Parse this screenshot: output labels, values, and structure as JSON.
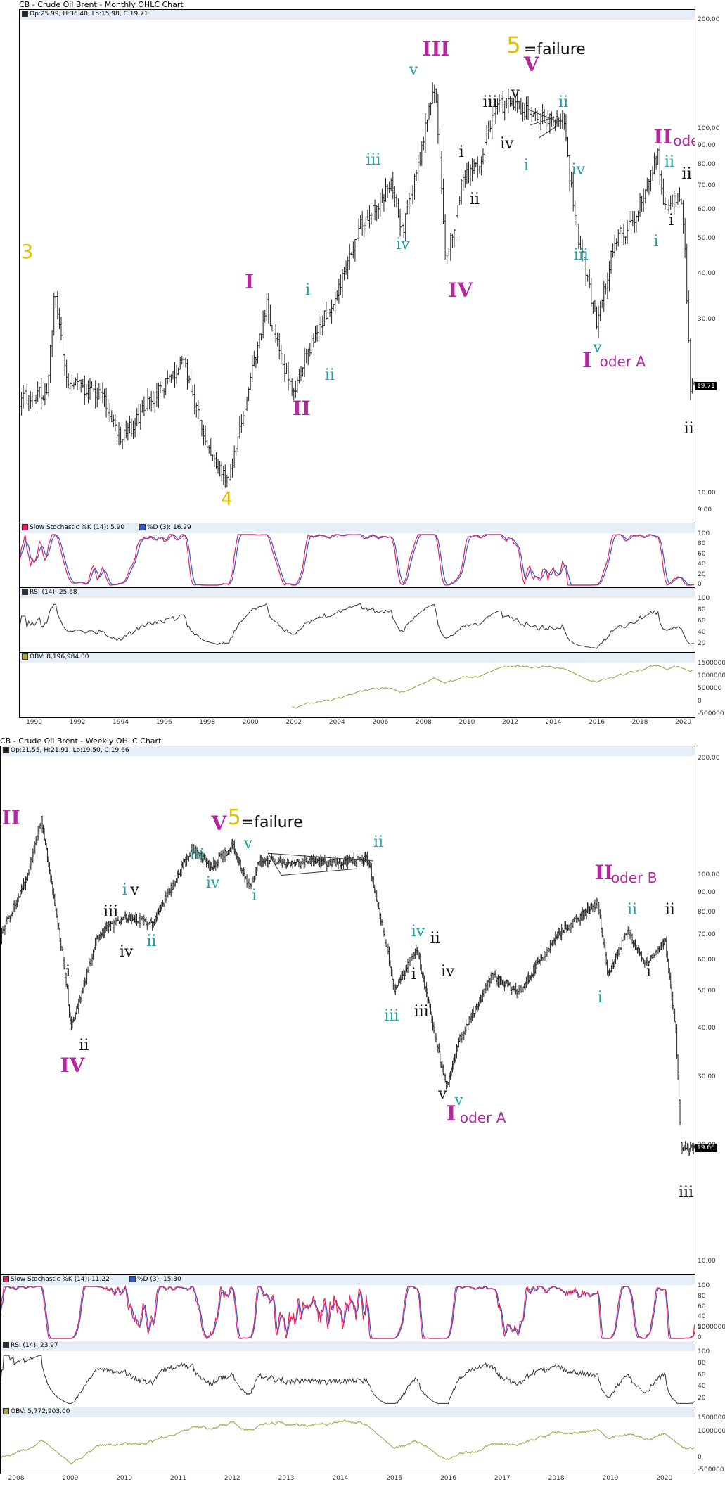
{
  "colors": {
    "magenta": "#b4279e",
    "teal": "#1d9fa5",
    "yellow": "#e0c100",
    "black": "#111111",
    "price": "#222222",
    "k_line": "#e0245e",
    "d_line": "#2a5bd7",
    "rsi": "#333333",
    "obv": "#a89f4e",
    "panel_header": "#e6eef8"
  },
  "charts": [
    {
      "id": "monthly",
      "title": "CB - Crude Oil Brent - Monthly OHLC Chart",
      "ohlc_label": "Op:25.99, H:36.40, Lo:15.98, C:19.71",
      "last_price": "19.71",
      "stoch_k_label": "Slow Stochastic %K (14): 5.90",
      "stoch_d_label": "%D (3): 16.29",
      "rsi_label": "RSI (14): 25.68",
      "obv_label": "OBV: 8,196,984.00",
      "price_ticks": [
        "200.00",
        "100.00",
        "90.00",
        "80.00",
        "70.00",
        "60.00",
        "50.00",
        "40.00",
        "30.00",
        "10.00",
        "9.00"
      ],
      "stoch_ticks": [
        "100",
        "80",
        "60",
        "40",
        "20",
        "0"
      ],
      "rsi_ticks": [
        "100",
        "80",
        "60",
        "40",
        "20"
      ],
      "obv_ticks": [
        "1500000",
        "1000000",
        "500000",
        "0",
        "-500000"
      ],
      "years": [
        "1990",
        "1992",
        "1994",
        "1996",
        "1998",
        "2000",
        "2002",
        "2004",
        "2006",
        "2008",
        "2010",
        "2012",
        "2014",
        "2016",
        "2018",
        "2020"
      ],
      "annotations": [
        {
          "text": "3",
          "color": "yellow",
          "x": 1989.35,
          "price": 46,
          "size": 28,
          "sans": true
        },
        {
          "text": "4",
          "color": "yellow",
          "x": 1998.6,
          "price": 9.6,
          "size": 26,
          "sans": true
        },
        {
          "text": "5",
          "color": "yellow",
          "x": 2011.8,
          "price": 170,
          "size": 32,
          "sans": true
        },
        {
          "text": "=failure",
          "color": "black",
          "x": 2012.6,
          "price": 165,
          "size": 22,
          "sans": true
        },
        {
          "text": "I",
          "color": "magenta",
          "x": 1999.7,
          "price": 38,
          "size": 28
        },
        {
          "text": "II",
          "color": "magenta",
          "x": 2001.9,
          "price": 17,
          "size": 28
        },
        {
          "text": "III",
          "color": "magenta",
          "x": 2007.9,
          "price": 165,
          "size": 28
        },
        {
          "text": "IV",
          "color": "magenta",
          "x": 2009.1,
          "price": 36,
          "size": 28
        },
        {
          "text": "V",
          "color": "magenta",
          "x": 2012.6,
          "price": 150,
          "size": 28
        },
        {
          "text": "I",
          "color": "magenta",
          "x": 2015.3,
          "price": 23,
          "size": 30
        },
        {
          "text": "oder A",
          "color": "magenta",
          "x": 2016.1,
          "price": 23,
          "size": 20,
          "sans": true
        },
        {
          "text": "II",
          "color": "magenta",
          "x": 2018.6,
          "price": 95,
          "size": 28
        },
        {
          "text": "oder B",
          "color": "magenta",
          "x": 2019.5,
          "price": 93,
          "size": 20,
          "sans": true
        },
        {
          "text": "v",
          "color": "teal",
          "x": 2007.3,
          "price": 145,
          "size": 22
        },
        {
          "text": "iii",
          "color": "teal",
          "x": 2005.3,
          "price": 82,
          "size": 22
        },
        {
          "text": "iv",
          "color": "teal",
          "x": 2006.7,
          "price": 48,
          "size": 22
        },
        {
          "text": "i",
          "color": "teal",
          "x": 2002.5,
          "price": 36,
          "size": 22
        },
        {
          "text": "ii",
          "color": "teal",
          "x": 2003.4,
          "price": 21,
          "size": 22
        },
        {
          "text": "iii",
          "color": "teal",
          "x": 2014.9,
          "price": 45,
          "size": 22
        },
        {
          "text": "iv",
          "color": "teal",
          "x": 2014.8,
          "price": 77,
          "size": 22
        },
        {
          "text": "v",
          "color": "teal",
          "x": 2015.8,
          "price": 25,
          "size": 22
        },
        {
          "text": "ii",
          "color": "teal",
          "x": 2014.2,
          "price": 118,
          "size": 22
        },
        {
          "text": "i",
          "color": "teal",
          "x": 2012.6,
          "price": 79,
          "size": 22
        },
        {
          "text": "ii",
          "color": "teal",
          "x": 2019.1,
          "price": 81,
          "size": 22
        },
        {
          "text": "i",
          "color": "teal",
          "x": 2018.6,
          "price": 49,
          "size": 22
        },
        {
          "text": "iii",
          "color": "black",
          "x": 2010.7,
          "price": 118,
          "size": 22
        },
        {
          "text": "v",
          "color": "black",
          "x": 2012.0,
          "price": 125,
          "size": 22
        },
        {
          "text": "iv",
          "color": "black",
          "x": 2011.5,
          "price": 91,
          "size": 22
        },
        {
          "text": "i",
          "color": "black",
          "x": 2009.6,
          "price": 86,
          "size": 22
        },
        {
          "text": "ii",
          "color": "black",
          "x": 2010.1,
          "price": 64,
          "size": 22
        },
        {
          "text": "i",
          "color": "black",
          "x": 2019.3,
          "price": 56,
          "size": 22
        },
        {
          "text": "ii",
          "color": "black",
          "x": 2019.9,
          "price": 75,
          "size": 22
        },
        {
          "text": "iii",
          "color": "black",
          "x": 2020.0,
          "price": 15,
          "size": 22
        }
      ]
    },
    {
      "id": "weekly",
      "title": "CB - Crude Oil Brent - Weekly OHLC Chart",
      "ohlc_label": "Op:21.55, H:21.91, Lo:19.50, C:19.66",
      "last_price": "19.66",
      "stoch_k_label": "Slow Stochastic %K (14): 11.22",
      "stoch_d_label": "%D (3): 15.30",
      "rsi_label": "RSI (14): 23.97",
      "obv_label": "OBV: 5,772,903.00",
      "price_ticks": [
        "200.00",
        "100.00",
        "90.00",
        "80.00",
        "70.00",
        "60.00",
        "50.00",
        "40.00",
        "30.00",
        "20.00",
        "10.00"
      ],
      "stoch_ticks": [
        "100",
        "80",
        "60",
        "40",
        "20",
        "0"
      ],
      "rsi_ticks": [
        "100",
        "80",
        "60",
        "40",
        "20"
      ],
      "obv_ticks": [
        "1500000",
        "1000000",
        "5000000",
        "0",
        "-500000"
      ],
      "years": [
        "2008",
        "2009",
        "2010",
        "2011",
        "2012",
        "2013",
        "2014",
        "2015",
        "2016",
        "2017",
        "2018",
        "2019",
        "2020"
      ],
      "annotations": [
        {
          "text": "III",
          "color": "magenta",
          "x": 2007.55,
          "price": 140,
          "size": 28
        },
        {
          "text": "IV",
          "color": "magenta",
          "x": 2008.8,
          "price": 32,
          "size": 28
        },
        {
          "text": "V",
          "color": "magenta",
          "x": 2011.6,
          "price": 135,
          "size": 28
        },
        {
          "text": "5",
          "color": "yellow",
          "x": 2011.9,
          "price": 140,
          "size": 30,
          "sans": true
        },
        {
          "text": "=failure",
          "color": "black",
          "x": 2012.15,
          "price": 136,
          "size": 22,
          "sans": true
        },
        {
          "text": "I",
          "color": "magenta",
          "x": 2015.95,
          "price": 24,
          "size": 30
        },
        {
          "text": "oder A",
          "color": "magenta",
          "x": 2016.2,
          "price": 23.5,
          "size": 20,
          "sans": true
        },
        {
          "text": "II",
          "color": "magenta",
          "x": 2018.7,
          "price": 101,
          "size": 28
        },
        {
          "text": "oder B",
          "color": "magenta",
          "x": 2019.0,
          "price": 98,
          "size": 20,
          "sans": true
        },
        {
          "text": "iii",
          "color": "teal",
          "x": 2011.2,
          "price": 112,
          "size": 22
        },
        {
          "text": "iv",
          "color": "teal",
          "x": 2011.5,
          "price": 95,
          "size": 22
        },
        {
          "text": "v",
          "color": "teal",
          "x": 2012.2,
          "price": 120,
          "size": 22
        },
        {
          "text": "i",
          "color": "teal",
          "x": 2012.35,
          "price": 88,
          "size": 22
        },
        {
          "text": "ii",
          "color": "teal",
          "x": 2014.6,
          "price": 121,
          "size": 22
        },
        {
          "text": "i",
          "color": "teal",
          "x": 2009.95,
          "price": 91,
          "size": 22
        },
        {
          "text": "ii",
          "color": "teal",
          "x": 2010.4,
          "price": 67,
          "size": 22
        },
        {
          "text": "iii",
          "color": "teal",
          "x": 2014.8,
          "price": 43,
          "size": 22
        },
        {
          "text": "iv",
          "color": "teal",
          "x": 2015.3,
          "price": 71,
          "size": 22
        },
        {
          "text": "v",
          "color": "teal",
          "x": 2016.1,
          "price": 26,
          "size": 22
        },
        {
          "text": "ii",
          "color": "teal",
          "x": 2019.3,
          "price": 81,
          "size": 22
        },
        {
          "text": "i",
          "color": "teal",
          "x": 2018.75,
          "price": 48,
          "size": 22
        },
        {
          "text": "i",
          "color": "black",
          "x": 2008.9,
          "price": 56,
          "size": 22
        },
        {
          "text": "ii",
          "color": "black",
          "x": 2009.15,
          "price": 36,
          "size": 22
        },
        {
          "text": "iii",
          "color": "black",
          "x": 2009.6,
          "price": 80,
          "size": 22
        },
        {
          "text": "v",
          "color": "black",
          "x": 2010.1,
          "price": 91,
          "size": 22
        },
        {
          "text": "iv",
          "color": "black",
          "x": 2009.9,
          "price": 63,
          "size": 22
        },
        {
          "text": "i",
          "color": "black",
          "x": 2015.3,
          "price": 55,
          "size": 22
        },
        {
          "text": "ii",
          "color": "black",
          "x": 2015.65,
          "price": 68,
          "size": 22
        },
        {
          "text": "iii",
          "color": "black",
          "x": 2015.35,
          "price": 44,
          "size": 22
        },
        {
          "text": "iv",
          "color": "black",
          "x": 2015.85,
          "price": 56,
          "size": 22
        },
        {
          "text": "v",
          "color": "black",
          "x": 2015.8,
          "price": 27,
          "size": 22
        },
        {
          "text": "i",
          "color": "black",
          "x": 2019.65,
          "price": 56,
          "size": 22
        },
        {
          "text": "ii",
          "color": "black",
          "x": 2020.0,
          "price": 81,
          "size": 22
        },
        {
          "text": "iii",
          "color": "black",
          "x": 2020.25,
          "price": 15,
          "size": 22
        }
      ]
    }
  ],
  "chart_data": [
    {
      "type": "ohlc",
      "title": "CB - Crude Oil Brent - Monthly OHLC Chart",
      "scale": "log",
      "ylim": [
        9,
        200
      ],
      "xlim": [
        1989.3,
        2020.5
      ],
      "x": [
        1989,
        1990.6,
        1990.9,
        1991.5,
        1993,
        1994,
        1995,
        1996.9,
        1998,
        1999,
        2000.7,
        2001.9,
        2003,
        2004,
        2005,
        2006.5,
        2007,
        2008.5,
        2009,
        2009.8,
        2010.5,
        2011.3,
        2012.2,
        2013,
        2014.4,
        2015,
        2016,
        2016.8,
        2017.6,
        2018.8,
        2019.1,
        2019.8,
        2020,
        2020.3
      ],
      "y": [
        18,
        19,
        36,
        20,
        19,
        14,
        17,
        23,
        13,
        11,
        33,
        19,
        28,
        36,
        55,
        70,
        53,
        133,
        42,
        75,
        80,
        115,
        120,
        108,
        108,
        55,
        29,
        50,
        55,
        85,
        60,
        65,
        55,
        19.7
      ]
    },
    {
      "type": "ohlc",
      "title": "CB - Crude Oil Brent - Weekly OHLC Chart",
      "scale": "log",
      "ylim": [
        10,
        200
      ],
      "xlim": [
        2007.7,
        2020.55
      ],
      "x": [
        2007.7,
        2008.2,
        2008.45,
        2008.9,
        2009.0,
        2009.5,
        2010.0,
        2010.5,
        2011.25,
        2011.6,
        2012.0,
        2012.3,
        2012.5,
        2013.0,
        2014.0,
        2014.5,
        2014.9,
        2015.0,
        2015.4,
        2015.6,
        2015.95,
        2016.2,
        2016.8,
        2017.3,
        2018.0,
        2018.75,
        2018.95,
        2019.3,
        2019.6,
        2019.8,
        2020.0,
        2020.2,
        2020.3
      ],
      "y": [
        70,
        100,
        140,
        55,
        40,
        70,
        78,
        75,
        118,
        105,
        120,
        92,
        110,
        108,
        108,
        110,
        60,
        50,
        65,
        48,
        28,
        38,
        55,
        50,
        70,
        85,
        55,
        72,
        60,
        62,
        68,
        40,
        19.7
      ]
    }
  ]
}
